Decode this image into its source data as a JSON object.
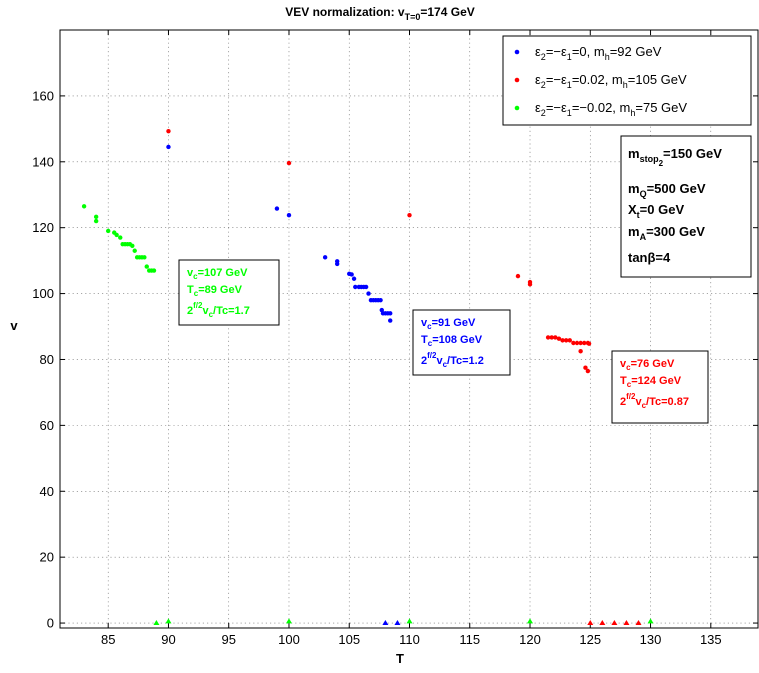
{
  "chart_data": {
    "type": "scatter",
    "title": {
      "main": "VEV normalization: v",
      "sub": "T=0",
      "tail": "=174 GeV"
    },
    "xlabel": "T",
    "ylabel": "v",
    "xlim": [
      81,
      139
    ],
    "ylim": [
      -1.5,
      180
    ],
    "xticks": [
      85,
      90,
      95,
      100,
      105,
      110,
      115,
      120,
      125,
      130,
      135
    ],
    "yticks": [
      0,
      20,
      40,
      60,
      80,
      100,
      120,
      140,
      160
    ],
    "grid": true,
    "legend_position": "top-right",
    "series": [
      {
        "name": "ε2=−ε1=0, mh=92 GeV",
        "legend": [
          "ε",
          "2",
          "=−ε",
          "1",
          "=0, m",
          "h",
          "=92 GeV"
        ],
        "color": "#0000ff",
        "marker": "dot",
        "points": [
          [
            90,
            144.5
          ],
          [
            99,
            125.8
          ],
          [
            100,
            123.8
          ],
          [
            103,
            111
          ],
          [
            104,
            109.8
          ],
          [
            104,
            109
          ],
          [
            105,
            106
          ],
          [
            105.2,
            105.8
          ],
          [
            105.4,
            104.5
          ],
          [
            105.5,
            102
          ],
          [
            105.8,
            102
          ],
          [
            106,
            102
          ],
          [
            106.2,
            102
          ],
          [
            106.4,
            102
          ],
          [
            106.6,
            100
          ],
          [
            106.8,
            98
          ],
          [
            107,
            98
          ],
          [
            107.2,
            98
          ],
          [
            107.4,
            98
          ],
          [
            107.6,
            98
          ],
          [
            107.7,
            95
          ],
          [
            107.8,
            94
          ],
          [
            108,
            94
          ],
          [
            108.2,
            94
          ],
          [
            108.4,
            94
          ],
          [
            108.4,
            91.8
          ],
          [
            108,
            0
          ],
          [
            109,
            0
          ]
        ]
      },
      {
        "name": "ε2=−ε1=0.02, mh=105 GeV",
        "legend": [
          "ε",
          "2",
          "=−ε",
          "1",
          "=0.02, m",
          "h",
          "=105 GeV"
        ],
        "color": "#ff0000",
        "marker": "dot",
        "points": [
          [
            90,
            149.3
          ],
          [
            100,
            139.6
          ],
          [
            110,
            123.8
          ],
          [
            119,
            105.3
          ],
          [
            120,
            103.5
          ],
          [
            120,
            102.8
          ],
          [
            121.5,
            86.7
          ],
          [
            121.8,
            86.7
          ],
          [
            122.1,
            86.7
          ],
          [
            122.4,
            86.3
          ],
          [
            122.7,
            85.8
          ],
          [
            123,
            85.8
          ],
          [
            123.3,
            85.8
          ],
          [
            123.6,
            85
          ],
          [
            123.9,
            85
          ],
          [
            124.2,
            85
          ],
          [
            124.5,
            85
          ],
          [
            124.8,
            85
          ],
          [
            124.9,
            84.8
          ],
          [
            124.2,
            82.5
          ],
          [
            124.6,
            77.5
          ],
          [
            124.8,
            76.5
          ],
          [
            125,
            0
          ],
          [
            126,
            0
          ],
          [
            127,
            0
          ],
          [
            128,
            0
          ],
          [
            129,
            0
          ]
        ]
      },
      {
        "name": "ε2=−ε1=−0.02, mh=75 GeV",
        "legend": [
          "ε",
          "2",
          "=−ε",
          "1",
          "=−0.02, m",
          "h",
          "=75 GeV"
        ],
        "color": "#00ff00",
        "marker": "dot",
        "points": [
          [
            83,
            126.5
          ],
          [
            84,
            123.3
          ],
          [
            84,
            122
          ],
          [
            85,
            119
          ],
          [
            85.5,
            118.5
          ],
          [
            85.7,
            117.8
          ],
          [
            86,
            117
          ],
          [
            86.2,
            115
          ],
          [
            86.4,
            115
          ],
          [
            86.6,
            115
          ],
          [
            86.8,
            115
          ],
          [
            87,
            114.5
          ],
          [
            87.2,
            113
          ],
          [
            87.4,
            111
          ],
          [
            87.6,
            111
          ],
          [
            87.8,
            111
          ],
          [
            88,
            111
          ],
          [
            88.2,
            108.2
          ],
          [
            88.4,
            107
          ],
          [
            88.6,
            107
          ],
          [
            88.8,
            107
          ],
          [
            89,
            0
          ],
          [
            90,
            0.5
          ],
          [
            100,
            0.5
          ],
          [
            110,
            0.5
          ],
          [
            120,
            0.5
          ],
          [
            130,
            0.5
          ]
        ]
      }
    ],
    "params_box": {
      "lines": [
        [
          "m",
          "stop",
          "2",
          "=150 GeV"
        ],
        [
          "m",
          "Q",
          "",
          "=500 GeV"
        ],
        [
          "X",
          "t",
          "",
          "=0 GeV"
        ],
        [
          "m",
          "A",
          "",
          "=300 GeV"
        ],
        [
          "tanβ=4",
          "",
          "",
          ""
        ]
      ]
    },
    "annotations": [
      {
        "color": "#00ff00",
        "lines": [
          [
            "v",
            "c",
            "=107 GeV"
          ],
          [
            "T",
            "c",
            "=89 GeV"
          ],
          [
            "2",
            "f/2",
            "v",
            "c",
            "/Tc=1.7"
          ]
        ]
      },
      {
        "color": "#0000ff",
        "lines": [
          [
            "v",
            "c",
            "=91 GeV"
          ],
          [
            "T",
            "c",
            "=108 GeV"
          ],
          [
            "2",
            "f/2",
            "v",
            "c",
            "/Tc=1.2"
          ]
        ]
      },
      {
        "color": "#ff0000",
        "lines": [
          [
            "v",
            "c",
            "=76 GeV"
          ],
          [
            "T",
            "c",
            "=124 GeV"
          ],
          [
            "2",
            "f/2",
            "v",
            "c",
            "/Tc=0.87"
          ]
        ]
      }
    ]
  }
}
